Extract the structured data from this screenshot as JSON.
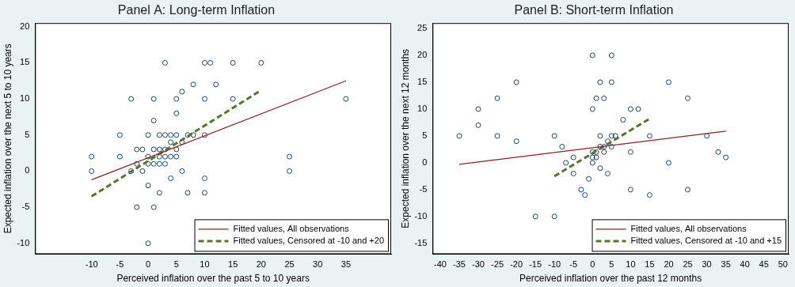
{
  "chart_data": [
    {
      "type": "scatter",
      "title": "Panel A: Long-term Inflation",
      "x_label": "Perceived inflation over the past 5 to 10 years",
      "y_label": "Expected inflation over the next 5 to 10 years",
      "xlim": [
        -20,
        43
      ],
      "ylim": [
        -11.5,
        20.5
      ],
      "xticks": [
        -10,
        -5,
        0,
        5,
        10,
        15,
        20,
        25,
        30,
        35
      ],
      "yticks": [
        -10,
        -5,
        0,
        5,
        10,
        15,
        20
      ],
      "grid": false,
      "legend": "lower right",
      "series": [
        {
          "type": "scatter",
          "color": "#1a476f",
          "marker": "hollow circle",
          "x": [
            0,
            1,
            2,
            3,
            2,
            0,
            3,
            5,
            5,
            4,
            3,
            2,
            1,
            2,
            3,
            4,
            4,
            5,
            10,
            6,
            7,
            8,
            10,
            -10,
            -10,
            -5,
            -5,
            -3,
            -2,
            -1,
            -2,
            -3,
            0,
            0,
            1,
            1,
            3,
            1,
            2,
            4,
            5,
            5,
            6,
            8,
            10,
            11,
            20,
            25,
            25,
            35,
            12,
            15,
            15,
            7,
            10,
            -1,
            0,
            -2,
            6,
            10
          ],
          "values": [
            1,
            1,
            2,
            2,
            3,
            2,
            3,
            3,
            5,
            5,
            5,
            5,
            3,
            1,
            1,
            2,
            4,
            2,
            10,
            4,
            5,
            5,
            5,
            2,
            0,
            2,
            5,
            0,
            3,
            3,
            -5,
            10,
            -10,
            5,
            7,
            10,
            15,
            -5,
            -3,
            -1,
            8,
            10,
            11,
            12,
            15,
            15,
            15,
            2,
            0,
            10,
            12,
            10,
            15,
            -3,
            -3,
            0,
            -2,
            1,
            0,
            -1
          ]
        },
        {
          "name": "Fitted values, All observations",
          "type": "line",
          "color": "#8b2323",
          "line_style": "solid",
          "x": [
            -10,
            35
          ],
          "values": [
            -1.2,
            12.5
          ]
        },
        {
          "name": "Fitted values, Censored at -10 and +20",
          "type": "line",
          "color": "#55752f",
          "line_style": "dashed",
          "x": [
            -10,
            20
          ],
          "values": [
            -3.5,
            11.2
          ]
        }
      ]
    },
    {
      "type": "scatter",
      "title": "Panel B: Short-term Inflation",
      "x_label": "Perceived inflation over the past 12 months",
      "y_label": "Expected inflation over the next 12 months",
      "xlim": [
        -42,
        51.5
      ],
      "ylim": [
        -17,
        26
      ],
      "xticks": [
        -40,
        -35,
        -30,
        -25,
        -20,
        -15,
        -10,
        -5,
        0,
        5,
        10,
        15,
        20,
        25,
        30,
        35,
        40,
        45,
        50
      ],
      "yticks": [
        -15,
        -10,
        -5,
        0,
        5,
        10,
        15,
        20,
        25
      ],
      "grid": false,
      "legend": "lower right",
      "series": [
        {
          "type": "scatter",
          "color": "#1a476f",
          "marker": "hollow circle",
          "x": [
            -35,
            -30,
            -30,
            -25,
            -25,
            -20,
            -20,
            -15,
            -10,
            -10,
            -7,
            -5,
            -5,
            -3,
            -2,
            0,
            0,
            0,
            1,
            2,
            3,
            2,
            4,
            5,
            6,
            10,
            5,
            3,
            1,
            0,
            5,
            5,
            2,
            1,
            3,
            10,
            15,
            20,
            25,
            25,
            35,
            30,
            33,
            8,
            10,
            -1,
            4,
            2,
            12,
            15,
            20,
            0,
            -8
          ],
          "values": [
            5,
            10,
            7,
            12,
            5,
            15,
            4,
            -10,
            -10,
            5,
            0,
            -2,
            1,
            -5,
            -6,
            0,
            1,
            2,
            2,
            3,
            3,
            5,
            4,
            5,
            5,
            10,
            3,
            2,
            1,
            20,
            20,
            15,
            15,
            12,
            12,
            -5,
            -6,
            15,
            12,
            -5,
            1,
            5,
            2,
            8,
            2,
            -3,
            -2,
            -1,
            10,
            5,
            0,
            10,
            3
          ]
        },
        {
          "name": "Fitted values, All observations",
          "type": "line",
          "color": "#8b2323",
          "line_style": "solid",
          "x": [
            -35,
            35
          ],
          "values": [
            -0.3,
            5.9
          ]
        },
        {
          "name": "Fitted values, Censored at -10 and +15",
          "type": "line",
          "color": "#55752f",
          "line_style": "dashed",
          "x": [
            -10,
            15
          ],
          "values": [
            -2.5,
            8.2
          ]
        }
      ]
    }
  ]
}
